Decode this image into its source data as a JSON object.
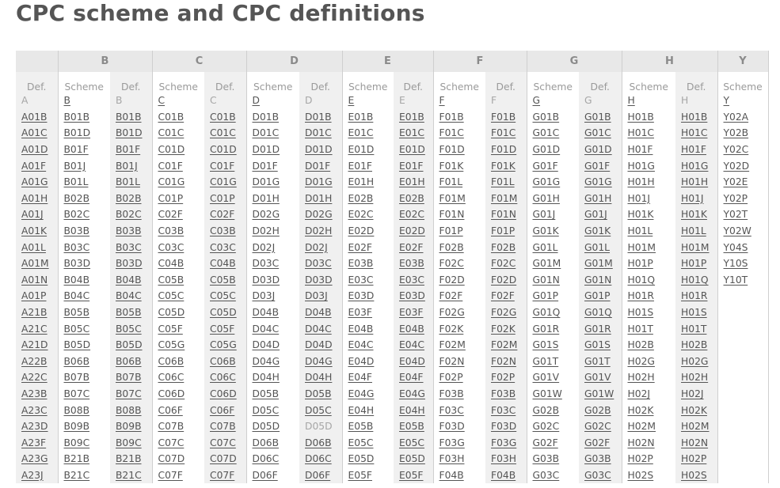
{
  "page_title": "CPC scheme and CPC definitions",
  "columns": [
    {
      "section": "",
      "sub": "Def.",
      "head": "A",
      "head_linked": false,
      "codes": [
        "A01B",
        "A01C",
        "A01D",
        "A01F",
        "A01G",
        "A01H",
        "A01J",
        "A01K",
        "A01L",
        "A01M",
        "A01N",
        "A01P",
        "A21B",
        "A21C",
        "A21D",
        "A22B",
        "A22C",
        "A23B",
        "A23C",
        "A23D",
        "A23F",
        "A23G",
        "A23J"
      ]
    },
    {
      "section": "B",
      "sub": "Scheme",
      "head": "B",
      "head_linked": true,
      "codes": [
        "B01B",
        "B01D",
        "B01F",
        "B01J",
        "B01L",
        "B02B",
        "B02C",
        "B03B",
        "B03C",
        "B03D",
        "B04B",
        "B04C",
        "B05B",
        "B05C",
        "B05D",
        "B06B",
        "B07B",
        "B07C",
        "B08B",
        "B09B",
        "B09C",
        "B21B",
        "B21C"
      ]
    },
    {
      "section": "",
      "sub": "Def.",
      "head": "B",
      "head_linked": false,
      "codes": [
        "B01B",
        "B01D",
        "B01F",
        "B01J",
        "B01L",
        "B02B",
        "B02C",
        "B03B",
        "B03C",
        "B03D",
        "B04B",
        "B04C",
        "B05B",
        "B05C",
        "B05D",
        "B06B",
        "B07B",
        "B07C",
        "B08B",
        "B09B",
        "B09C",
        "B21B",
        "B21C"
      ]
    },
    {
      "section": "C",
      "sub": "Scheme",
      "head": "C",
      "head_linked": true,
      "codes": [
        "C01B",
        "C01C",
        "C01D",
        "C01F",
        "C01G",
        "C01P",
        "C02F",
        "C03B",
        "C03C",
        "C04B",
        "C05B",
        "C05C",
        "C05D",
        "C05F",
        "C05G",
        "C06B",
        "C06C",
        "C06D",
        "C06F",
        "C07B",
        "C07C",
        "C07D",
        "C07F"
      ]
    },
    {
      "section": "",
      "sub": "Def.",
      "head": "C",
      "head_linked": false,
      "codes": [
        "C01B",
        "C01C",
        "C01D",
        "C01F",
        "C01G",
        "C01P",
        "C02F",
        "C03B",
        "C03C",
        "C04B",
        "C05B",
        "C05C",
        "C05D",
        "C05F",
        "C05G",
        "C06B",
        "C06C",
        "C06D",
        "C06F",
        "C07B",
        "C07C",
        "C07D",
        "C07F"
      ]
    },
    {
      "section": "D",
      "sub": "Scheme",
      "head": "D",
      "head_linked": true,
      "codes": [
        "D01B",
        "D01C",
        "D01D",
        "D01F",
        "D01G",
        "D01H",
        "D02G",
        "D02H",
        "D02J",
        "D03C",
        "D03D",
        "D03J",
        "D04B",
        "D04C",
        "D04D",
        "D04G",
        "D04H",
        "D05B",
        "D05C",
        "D05D",
        "D06B",
        "D06C",
        "D06F"
      ]
    },
    {
      "section": "",
      "sub": "Def.",
      "head": "D",
      "head_linked": false,
      "codes": [
        "D01B",
        "D01C",
        "D01D",
        "D01F",
        "D01G",
        "D01H",
        "D02G",
        "D02H",
        "D02J",
        "D03C",
        "D03D",
        "D03J",
        "D04B",
        "D04C",
        "D04D",
        "D04G",
        "D04H",
        "D05B",
        "D05C",
        "D05D",
        "D06B",
        "D06C",
        "D06F"
      ]
    },
    {
      "section": "E",
      "sub": "Scheme",
      "head": "E",
      "head_linked": true,
      "codes": [
        "E01B",
        "E01C",
        "E01D",
        "E01F",
        "E01H",
        "E02B",
        "E02C",
        "E02D",
        "E02F",
        "E03B",
        "E03C",
        "E03D",
        "E03F",
        "E04B",
        "E04C",
        "E04D",
        "E04F",
        "E04G",
        "E04H",
        "E05B",
        "E05C",
        "E05D",
        "E05F"
      ]
    },
    {
      "section": "",
      "sub": "Def.",
      "head": "E",
      "head_linked": false,
      "codes": [
        "E01B",
        "E01C",
        "E01D",
        "E01F",
        "E01H",
        "E02B",
        "E02C",
        "E02D",
        "E02F",
        "E03B",
        "E03C",
        "E03D",
        "E03F",
        "E04B",
        "E04C",
        "E04D",
        "E04F",
        "E04G",
        "E04H",
        "E05B",
        "E05C",
        "E05D",
        "E05F"
      ]
    },
    {
      "section": "F",
      "sub": "Scheme",
      "head": "F",
      "head_linked": true,
      "codes": [
        "F01B",
        "F01C",
        "F01D",
        "F01K",
        "F01L",
        "F01M",
        "F01N",
        "F01P",
        "F02B",
        "F02C",
        "F02D",
        "F02F",
        "F02G",
        "F02K",
        "F02M",
        "F02N",
        "F02P",
        "F03B",
        "F03C",
        "F03D",
        "F03G",
        "F03H",
        "F04B"
      ]
    },
    {
      "section": "",
      "sub": "Def.",
      "head": "F",
      "head_linked": false,
      "codes": [
        "F01B",
        "F01C",
        "F01D",
        "F01K",
        "F01L",
        "F01M",
        "F01N",
        "F01P",
        "F02B",
        "F02C",
        "F02D",
        "F02F",
        "F02G",
        "F02K",
        "F02M",
        "F02N",
        "F02P",
        "F03B",
        "F03C",
        "F03D",
        "F03G",
        "F03H",
        "F04B"
      ]
    },
    {
      "section": "G",
      "sub": "Scheme",
      "head": "G",
      "head_linked": true,
      "codes": [
        "G01B",
        "G01C",
        "G01D",
        "G01F",
        "G01G",
        "G01H",
        "G01J",
        "G01K",
        "G01L",
        "G01M",
        "G01N",
        "G01P",
        "G01Q",
        "G01R",
        "G01S",
        "G01T",
        "G01V",
        "G01W",
        "G02B",
        "G02C",
        "G02F",
        "G03B",
        "G03C"
      ]
    },
    {
      "section": "",
      "sub": "Def.",
      "head": "G",
      "head_linked": false,
      "codes": [
        "G01B",
        "G01C",
        "G01D",
        "G01F",
        "G01G",
        "G01H",
        "G01J",
        "G01K",
        "G01L",
        "G01M",
        "G01N",
        "G01P",
        "G01Q",
        "G01R",
        "G01S",
        "G01T",
        "G01V",
        "G01W",
        "G02B",
        "G02C",
        "G02F",
        "G03B",
        "G03C"
      ]
    },
    {
      "section": "H",
      "sub": "Scheme",
      "head": "H",
      "head_linked": true,
      "codes": [
        "H01B",
        "H01C",
        "H01F",
        "H01G",
        "H01H",
        "H01J",
        "H01K",
        "H01L",
        "H01M",
        "H01P",
        "H01Q",
        "H01R",
        "H01S",
        "H01T",
        "H02B",
        "H02G",
        "H02H",
        "H02J",
        "H02K",
        "H02M",
        "H02N",
        "H02P",
        "H02S"
      ]
    },
    {
      "section": "",
      "sub": "Def.",
      "head": "H",
      "head_linked": false,
      "codes": [
        "H01B",
        "H01C",
        "H01F",
        "H01G",
        "H01H",
        "H01J",
        "H01K",
        "H01L",
        "H01M",
        "H01P",
        "H01Q",
        "H01R",
        "H01S",
        "H01T",
        "H02B",
        "H02G",
        "H02H",
        "H02J",
        "H02K",
        "H02M",
        "H02N",
        "H02P",
        "H02S"
      ]
    },
    {
      "section": "Y",
      "sub": "Scheme",
      "head": "Y",
      "head_linked": true,
      "codes": [
        "Y02A",
        "Y02B",
        "Y02C",
        "Y02D",
        "Y02E",
        "Y02P",
        "Y02T",
        "Y02W",
        "Y04S",
        "Y10S",
        "Y10T"
      ]
    }
  ],
  "unlinked_codes": [
    "D05D"
  ],
  "colors": {
    "title": "#555555",
    "link": "#555555",
    "muted": "#a6a6a6",
    "header_bg": "#e8e8e8",
    "stripe_bg": "#f0f0f0"
  }
}
